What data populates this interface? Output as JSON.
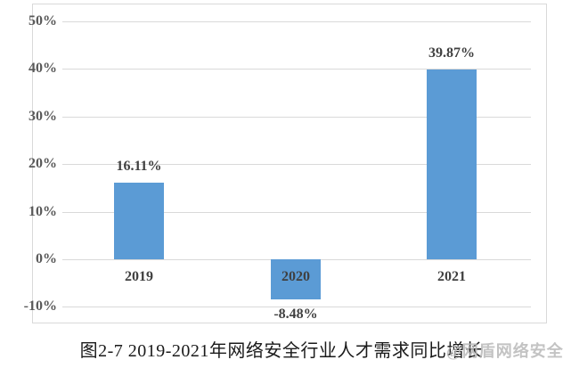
{
  "chart": {
    "title": "图2-7 2019-2021年网络安全行业人才需求同比增长",
    "watermark": "@网盾网络安全",
    "colors": {
      "bar": "#5b9bd5",
      "gridline": "#d9d9d9",
      "frame_border": "#d9d9d9",
      "tick_text": "#595959",
      "label_text": "#404040",
      "title_text": "#1a1a1a",
      "watermark_text": "#b9b9b9",
      "background": "#ffffff"
    }
  },
  "chart_data": {
    "type": "bar",
    "title": "图2-7 2019-2021年网络安全行业人才需求同比增长",
    "categories": [
      "2019",
      "2020",
      "2021"
    ],
    "values": [
      16.11,
      -8.48,
      39.87
    ],
    "data_labels": [
      "16.11%",
      "-8.48%",
      "39.87%"
    ],
    "series_name": "网络安全行业人才需求同比增长",
    "yticks": [
      50,
      40,
      30,
      20,
      10,
      0,
      -10
    ],
    "ytick_labels": [
      "50%",
      "40%",
      "30%",
      "20%",
      "10%",
      "0%",
      "-10%"
    ],
    "ylim": [
      -10,
      50
    ],
    "xlabel": "",
    "ylabel": "",
    "grid": true,
    "legend": "none",
    "bar_color": "#5b9bd5"
  }
}
